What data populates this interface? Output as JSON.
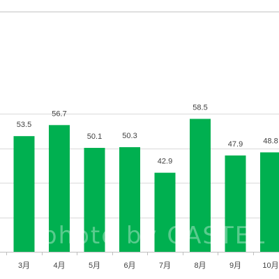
{
  "chart_data": {
    "type": "bar",
    "categories": [
      "",
      "3月",
      "4月",
      "5月",
      "6月",
      "7月",
      "8月",
      "9月",
      "10月"
    ],
    "values": [
      null,
      53.5,
      56.7,
      50.1,
      50.3,
      42.9,
      58.5,
      47.9,
      48.8
    ],
    "data_labels": [
      "",
      "53.5",
      "56.7",
      "50.1",
      "50.3",
      "42.9",
      "58.5",
      "47.9",
      "48.8"
    ],
    "ylim": [
      20,
      70
    ],
    "grid": true,
    "bar_color": "#00b050",
    "gridline_color": "#d9d9d9",
    "axis_color": "#bfbfbf",
    "text_color": "#404040"
  },
  "watermark": "photo by CASTEL"
}
